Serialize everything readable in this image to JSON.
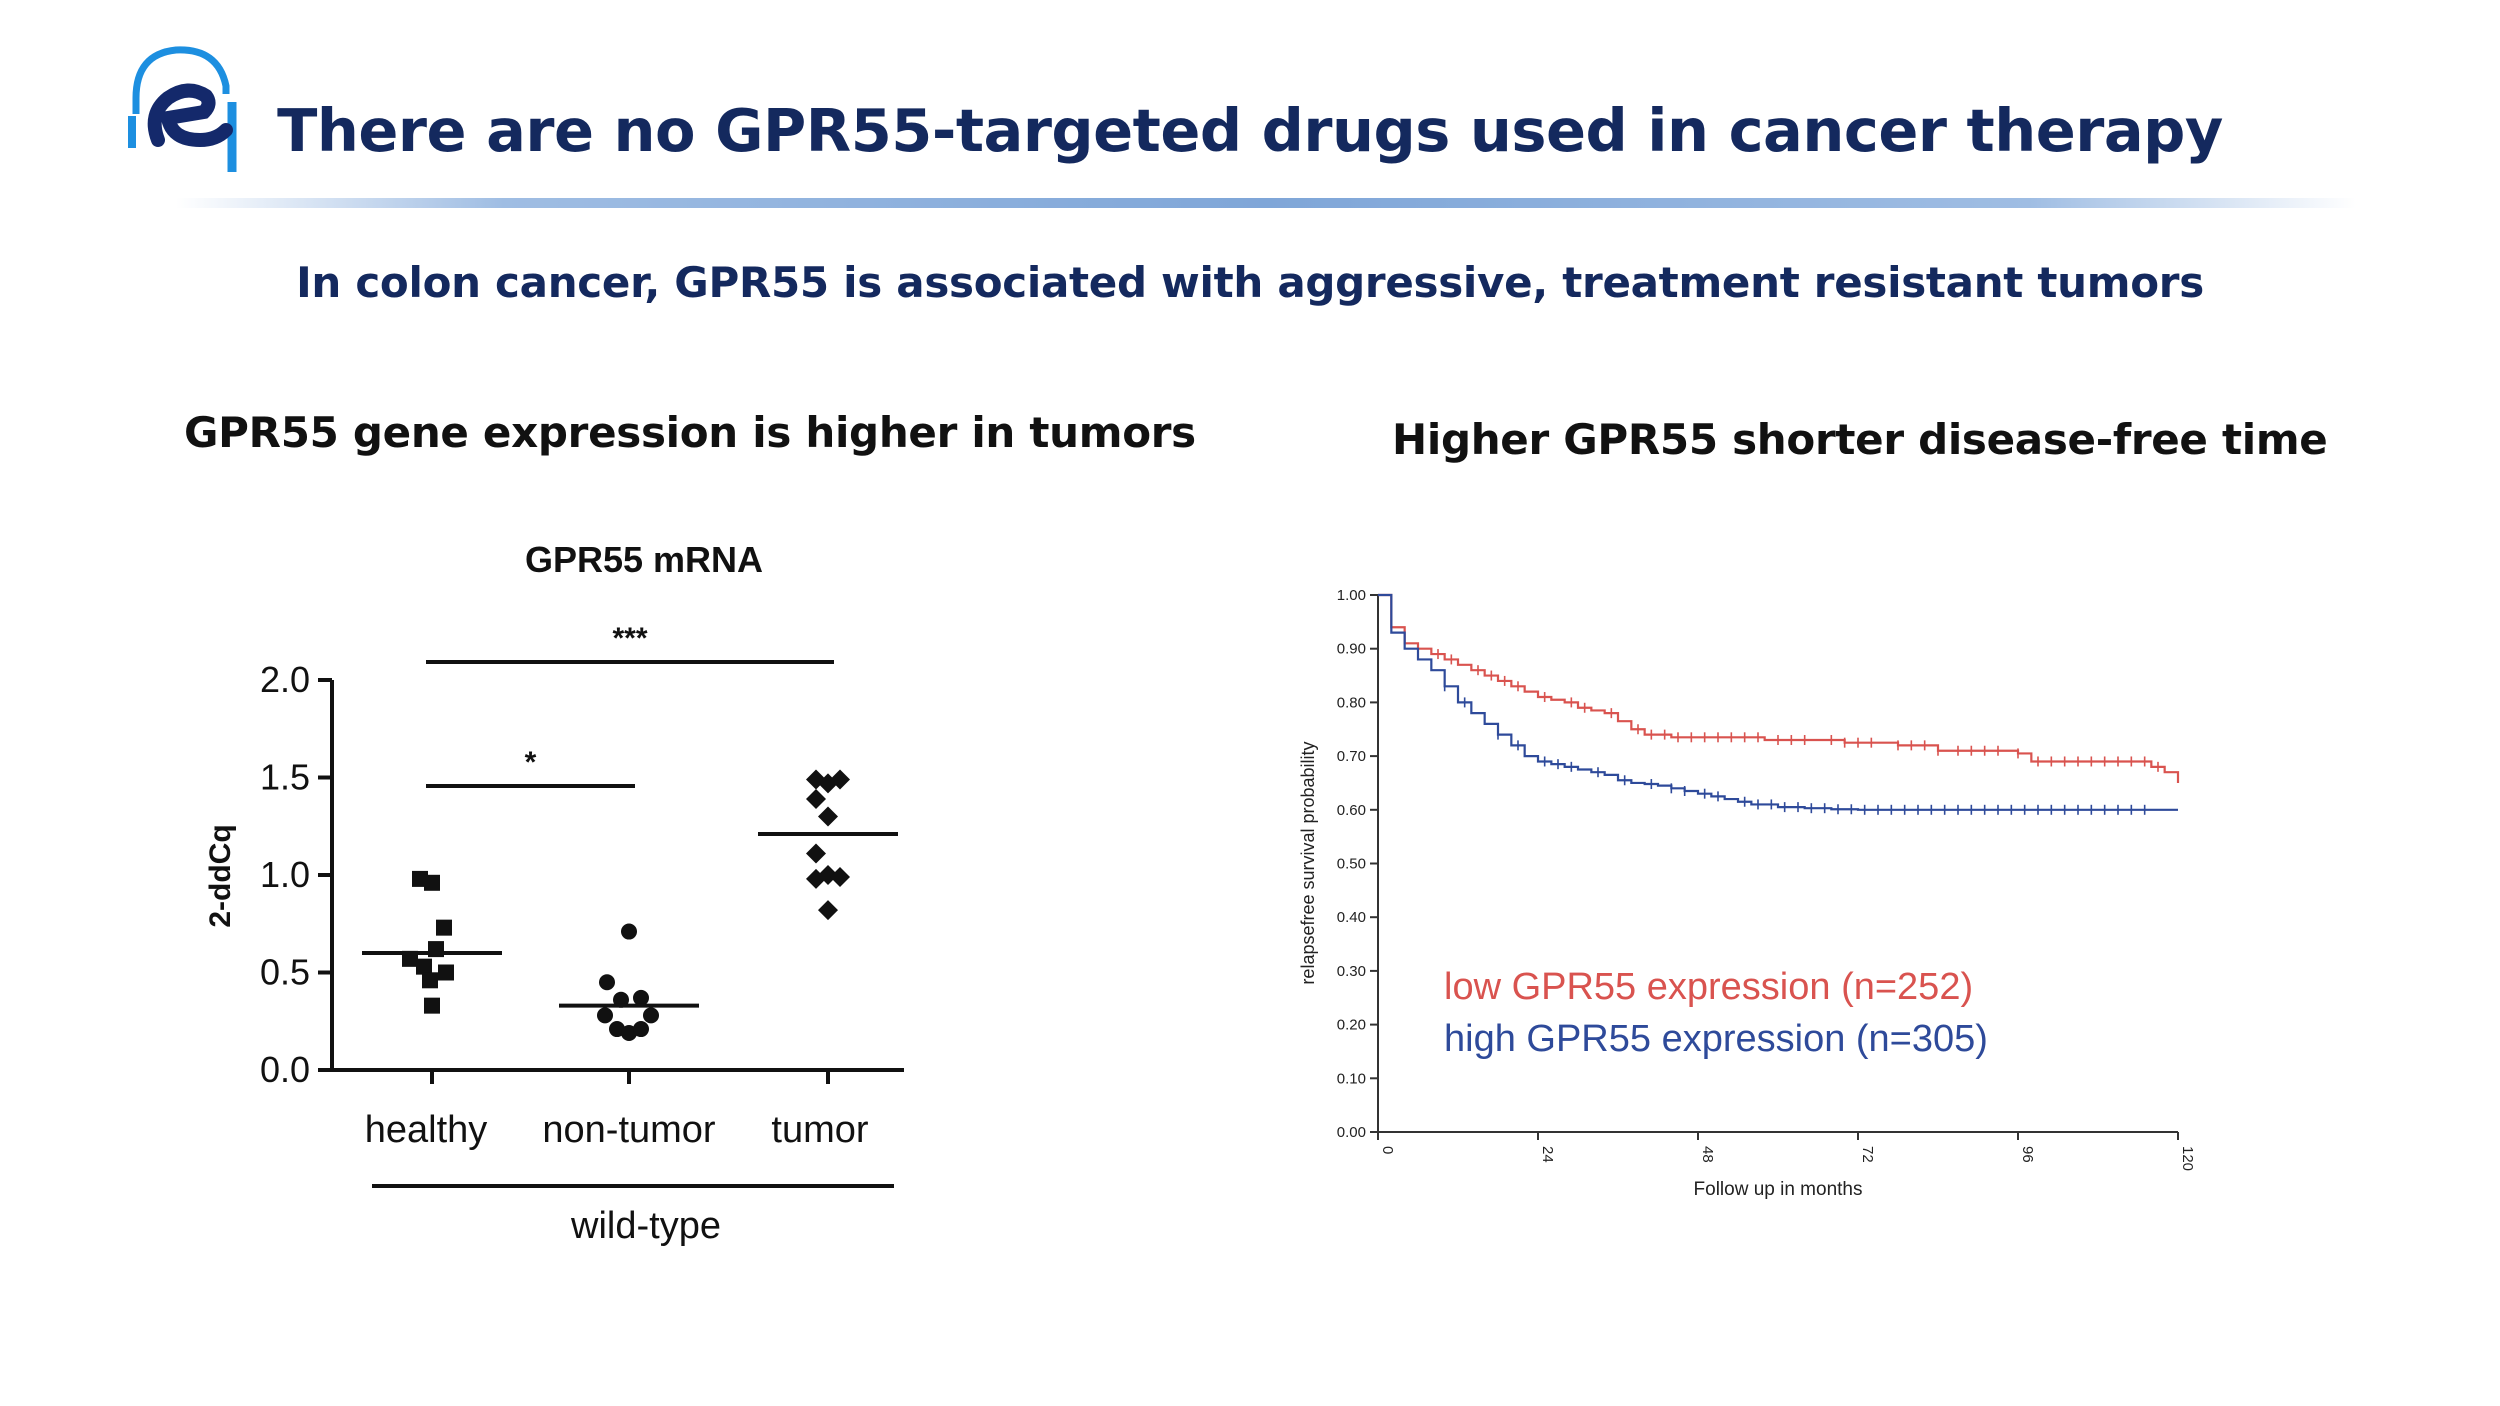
{
  "slide": {
    "title": "There are no GPR55-targeted drugs used in cancer therapy",
    "subtitle": "In colon cancer, GPR55 is associated with aggressive, treatment resistant tumors",
    "left_heading": "GPR55 gene expression is higher in tumors",
    "right_heading": "Higher GPR55 shorter disease-free time",
    "colors": {
      "title": "#14295e",
      "logo_dark": "#14296b",
      "logo_light": "#1d8fe0"
    }
  },
  "chart_data": [
    {
      "type": "scatter",
      "title": "GPR55 mRNA",
      "ylabel": "2-ddCq",
      "ylim": [
        0,
        2
      ],
      "yticks": [
        0.0,
        0.5,
        1.0,
        1.5,
        2.0
      ],
      "ytick_labels": [
        "0.0",
        "0.5",
        "1.0",
        "1.5",
        "2.0"
      ],
      "categories": [
        "healthy",
        "non-tumor",
        "tumor"
      ],
      "group_label": "wild-type",
      "grid": false,
      "series": [
        {
          "category": "healthy",
          "marker": "square",
          "mean": 0.6,
          "points": [
            {
              "x": -0.12,
              "y": 0.98
            },
            {
              "x": 0.0,
              "y": 0.96
            },
            {
              "x": 0.12,
              "y": 0.73
            },
            {
              "x": -0.22,
              "y": 0.57
            },
            {
              "x": -0.08,
              "y": 0.53
            },
            {
              "x": 0.04,
              "y": 0.62
            },
            {
              "x": 0.14,
              "y": 0.5
            },
            {
              "x": -0.02,
              "y": 0.46
            },
            {
              "x": 0.0,
              "y": 0.33
            }
          ]
        },
        {
          "category": "non-tumor",
          "marker": "circle",
          "mean": 0.33,
          "points": [
            {
              "x": 0.0,
              "y": 0.71
            },
            {
              "x": -0.22,
              "y": 0.45
            },
            {
              "x": -0.08,
              "y": 0.36
            },
            {
              "x": 0.12,
              "y": 0.37
            },
            {
              "x": -0.24,
              "y": 0.28
            },
            {
              "x": 0.22,
              "y": 0.28
            },
            {
              "x": -0.12,
              "y": 0.21
            },
            {
              "x": 0.0,
              "y": 0.19
            },
            {
              "x": 0.12,
              "y": 0.21
            }
          ]
        },
        {
          "category": "tumor",
          "marker": "diamond",
          "mean": 1.21,
          "points": [
            {
              "x": -0.12,
              "y": 1.49
            },
            {
              "x": 0.0,
              "y": 1.47
            },
            {
              "x": 0.12,
              "y": 1.49
            },
            {
              "x": -0.12,
              "y": 1.39
            },
            {
              "x": 0.0,
              "y": 1.3
            },
            {
              "x": -0.12,
              "y": 1.11
            },
            {
              "x": 0.0,
              "y": 1.0
            },
            {
              "x": -0.12,
              "y": 0.98
            },
            {
              "x": 0.12,
              "y": 0.99
            },
            {
              "x": 0.0,
              "y": 0.82
            }
          ]
        }
      ],
      "significance": [
        {
          "from": "healthy",
          "to": "tumor",
          "label": "***"
        },
        {
          "from": "healthy",
          "to": "non-tumor",
          "label": "*"
        }
      ]
    },
    {
      "type": "line",
      "title": "",
      "xlabel": "Follow up in months",
      "ylabel": "relapsefree survival probability",
      "xlim": [
        0,
        120
      ],
      "ylim": [
        0,
        1
      ],
      "xticks": [
        0,
        24,
        48,
        72,
        96,
        120
      ],
      "xtick_labels": [
        "0",
        "24",
        "48",
        "72",
        "96",
        "120"
      ],
      "yticks": [
        0.0,
        0.1,
        0.2,
        0.3,
        0.4,
        0.5,
        0.6,
        0.7,
        0.8,
        0.9,
        1.0
      ],
      "ytick_labels": [
        "0.00",
        "0.10",
        "0.20",
        "0.30",
        "0.40",
        "0.50",
        "0.60",
        "0.70",
        "0.80",
        "0.90",
        "1.00"
      ],
      "grid": false,
      "legend_position": "lower-center",
      "series": [
        {
          "name": "low GPR55 expression (n=252)",
          "color": "#d9534f",
          "x": [
            0,
            2,
            4,
            6,
            8,
            10,
            12,
            14,
            16,
            18,
            20,
            22,
            24,
            26,
            28,
            30,
            32,
            34,
            36,
            38,
            40,
            42,
            44,
            46,
            48,
            50,
            54,
            58,
            62,
            66,
            70,
            74,
            76,
            78,
            80,
            84,
            86,
            90,
            94,
            96,
            98,
            100,
            110,
            116,
            118,
            120
          ],
          "y": [
            1.0,
            0.94,
            0.91,
            0.9,
            0.89,
            0.88,
            0.87,
            0.86,
            0.85,
            0.84,
            0.83,
            0.82,
            0.81,
            0.805,
            0.8,
            0.79,
            0.785,
            0.78,
            0.765,
            0.75,
            0.74,
            0.74,
            0.735,
            0.735,
            0.735,
            0.735,
            0.735,
            0.73,
            0.73,
            0.73,
            0.725,
            0.725,
            0.725,
            0.72,
            0.72,
            0.71,
            0.71,
            0.71,
            0.71,
            0.705,
            0.69,
            0.69,
            0.69,
            0.68,
            0.67,
            0.65
          ],
          "censor_x": [
            6,
            9,
            11,
            15,
            17,
            19,
            21,
            25,
            29,
            31,
            35,
            39,
            41,
            43,
            45,
            47,
            49,
            51,
            53,
            55,
            57,
            60,
            62,
            64,
            68,
            70,
            72,
            74,
            78,
            80,
            82,
            84,
            87,
            89,
            91,
            93,
            96,
            99,
            101,
            103,
            105,
            107,
            109,
            111,
            113,
            115,
            117
          ]
        },
        {
          "name": "high GPR55 expression (n=305)",
          "color": "#2e4a9a",
          "x": [
            0,
            2,
            4,
            6,
            8,
            10,
            12,
            14,
            16,
            18,
            20,
            22,
            24,
            26,
            28,
            30,
            32,
            34,
            36,
            38,
            40,
            42,
            44,
            46,
            48,
            50,
            52,
            54,
            56,
            60,
            64,
            68,
            72,
            76,
            80,
            120
          ],
          "y": [
            1.0,
            0.93,
            0.9,
            0.88,
            0.86,
            0.83,
            0.8,
            0.78,
            0.76,
            0.74,
            0.72,
            0.7,
            0.69,
            0.685,
            0.68,
            0.675,
            0.67,
            0.665,
            0.655,
            0.65,
            0.648,
            0.645,
            0.64,
            0.635,
            0.63,
            0.625,
            0.62,
            0.615,
            0.61,
            0.605,
            0.603,
            0.601,
            0.6,
            0.6,
            0.6,
            0.6
          ],
          "censor_x": [
            10,
            13,
            18,
            21,
            25,
            27,
            29,
            33,
            37,
            41,
            44,
            46,
            49,
            51,
            55,
            57,
            59,
            61,
            63,
            65,
            67,
            69,
            71,
            73,
            75,
            77,
            79,
            81,
            83,
            85,
            87,
            89,
            91,
            93,
            95,
            97,
            99,
            101,
            103,
            105,
            107,
            109,
            111,
            113,
            115
          ]
        }
      ]
    }
  ]
}
